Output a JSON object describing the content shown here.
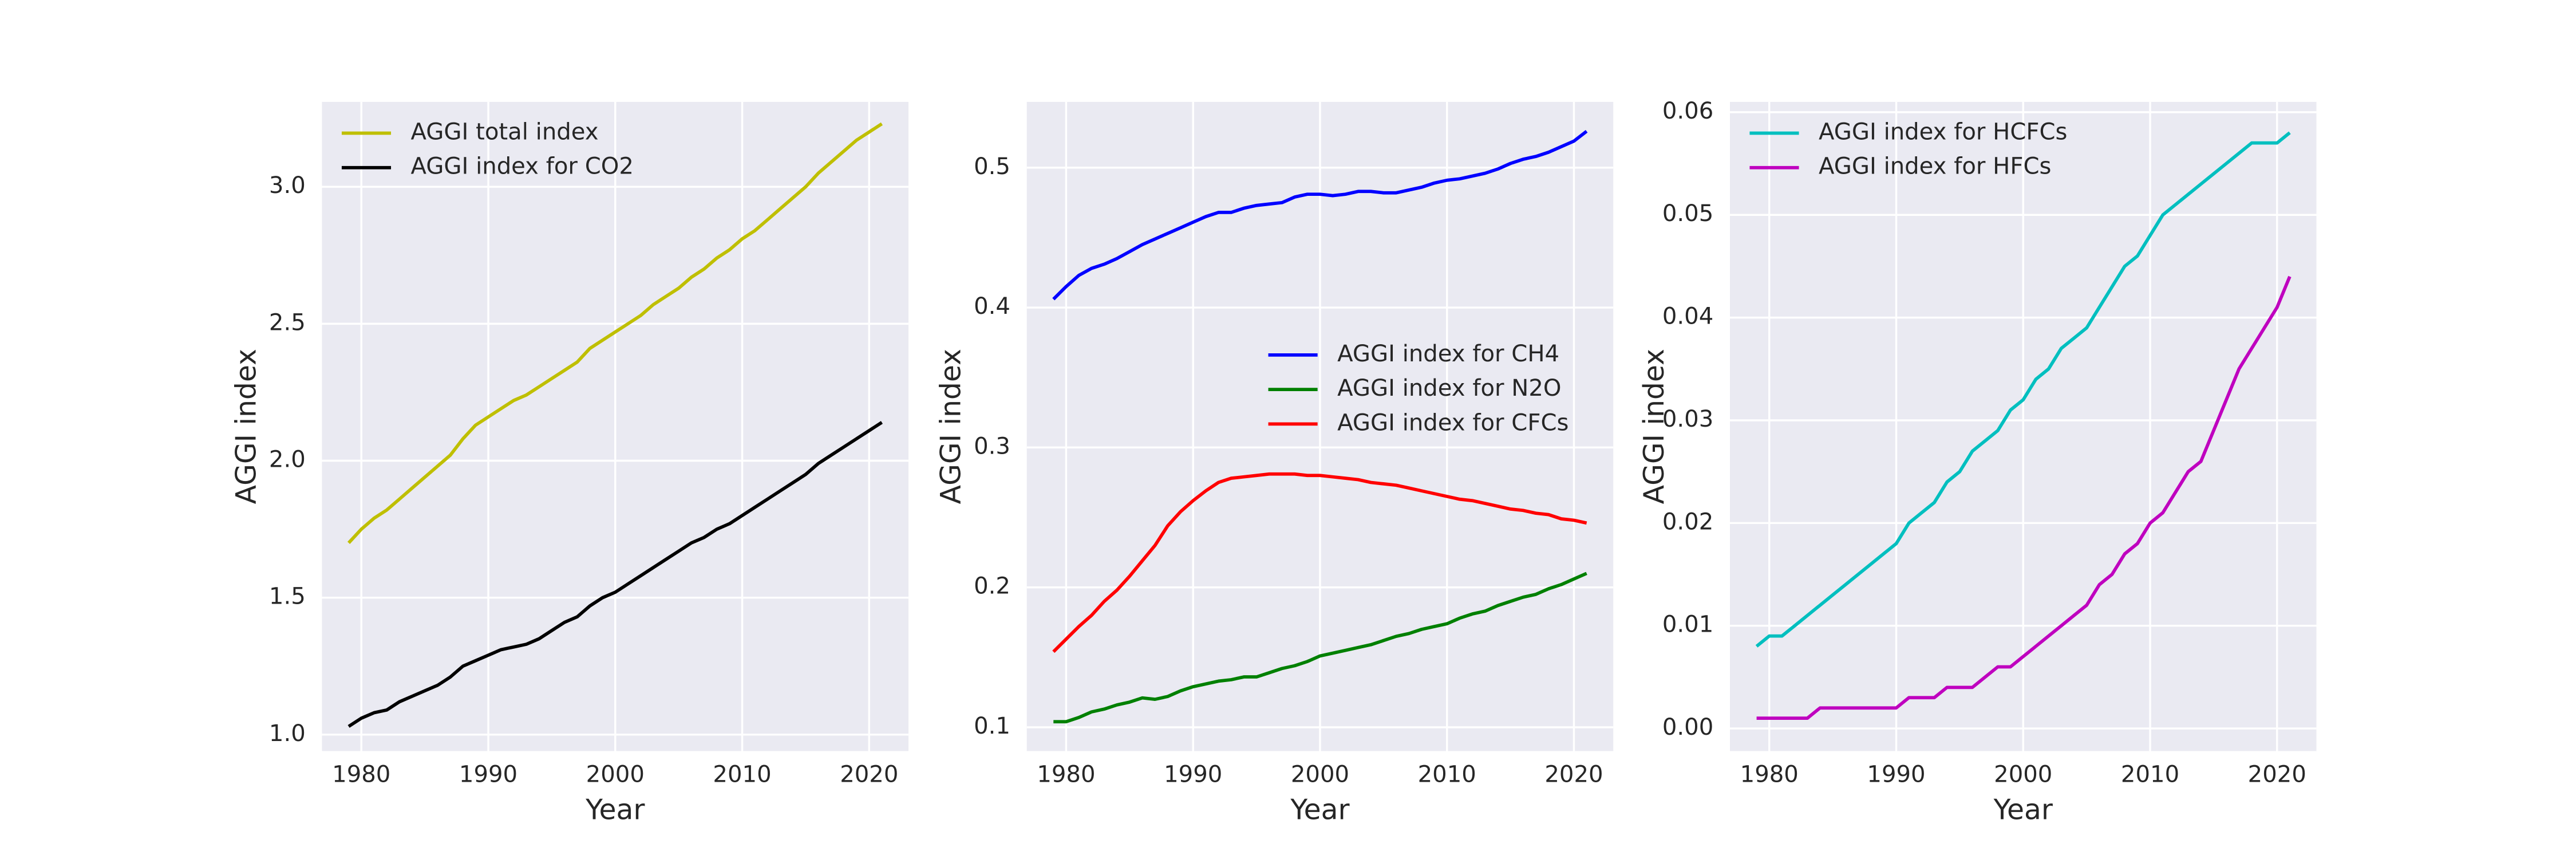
{
  "chart_data": [
    {
      "type": "line",
      "xlabel": "Year",
      "ylabel": "AGGI index",
      "grid": true,
      "legend_loc": "upper left",
      "x": [
        1979,
        1980,
        1981,
        1982,
        1983,
        1984,
        1985,
        1986,
        1987,
        1988,
        1989,
        1990,
        1991,
        1992,
        1993,
        1994,
        1995,
        1996,
        1997,
        1998,
        1999,
        2000,
        2001,
        2002,
        2003,
        2004,
        2005,
        2006,
        2007,
        2008,
        2009,
        2010,
        2011,
        2012,
        2013,
        2014,
        2015,
        2016,
        2017,
        2018,
        2019,
        2020,
        2021
      ],
      "xlim": [
        1976.9,
        2023.1
      ],
      "xticks": [
        1980,
        1990,
        2000,
        2010,
        2020
      ],
      "ylim": [
        0.94,
        3.31
      ],
      "yticks": [
        {
          "value": 1,
          "label": "1.0"
        },
        1.5,
        {
          "value": 2,
          "label": "2.0"
        },
        2.5,
        {
          "value": 3,
          "label": "3.0"
        }
      ],
      "series": [
        {
          "name": "AGGI total index",
          "color": "#bfbf00",
          "values": [
            1.7,
            1.75,
            1.79,
            1.82,
            1.86,
            1.9,
            1.94,
            1.98,
            2.02,
            2.08,
            2.13,
            2.16,
            2.19,
            2.22,
            2.24,
            2.27,
            2.3,
            2.33,
            2.36,
            2.41,
            2.44,
            2.47,
            2.5,
            2.53,
            2.57,
            2.6,
            2.63,
            2.67,
            2.7,
            2.74,
            2.77,
            2.81,
            2.84,
            2.88,
            2.92,
            2.96,
            3.0,
            3.05,
            3.09,
            3.13,
            3.17,
            3.2,
            3.23
          ]
        },
        {
          "name": "AGGI index for CO2",
          "color": "#000000",
          "values": [
            1.03,
            1.06,
            1.08,
            1.09,
            1.12,
            1.14,
            1.16,
            1.18,
            1.21,
            1.25,
            1.27,
            1.29,
            1.31,
            1.32,
            1.33,
            1.35,
            1.38,
            1.41,
            1.43,
            1.47,
            1.5,
            1.52,
            1.55,
            1.58,
            1.61,
            1.64,
            1.67,
            1.7,
            1.72,
            1.75,
            1.77,
            1.8,
            1.83,
            1.86,
            1.89,
            1.92,
            1.95,
            1.99,
            2.02,
            2.05,
            2.08,
            2.11,
            2.14
          ]
        }
      ]
    },
    {
      "type": "line",
      "xlabel": "Year",
      "ylabel": "AGGI index",
      "grid": true,
      "legend_loc": "center right",
      "x": [
        1979,
        1980,
        1981,
        1982,
        1983,
        1984,
        1985,
        1986,
        1987,
        1988,
        1989,
        1990,
        1991,
        1992,
        1993,
        1994,
        1995,
        1996,
        1997,
        1998,
        1999,
        2000,
        2001,
        2002,
        2003,
        2004,
        2005,
        2006,
        2007,
        2008,
        2009,
        2010,
        2011,
        2012,
        2013,
        2014,
        2015,
        2016,
        2017,
        2018,
        2019,
        2020,
        2021
      ],
      "xlim": [
        1976.9,
        2023.1
      ],
      "xticks": [
        1980,
        1990,
        2000,
        2010,
        2020
      ],
      "ylim": [
        0.083,
        0.547
      ],
      "yticks": [
        0.1,
        0.2,
        0.3,
        0.4,
        0.5
      ],
      "series": [
        {
          "name": "AGGI index for CH4",
          "color": "#0000ff",
          "values": [
            0.406,
            0.415,
            0.423,
            0.428,
            0.431,
            0.435,
            0.44,
            0.445,
            0.449,
            0.453,
            0.457,
            0.461,
            0.465,
            0.468,
            0.468,
            0.471,
            0.473,
            0.474,
            0.475,
            0.479,
            0.481,
            0.481,
            0.48,
            0.481,
            0.483,
            0.483,
            0.482,
            0.482,
            0.484,
            0.486,
            0.489,
            0.491,
            0.492,
            0.494,
            0.496,
            0.499,
            0.503,
            0.506,
            0.508,
            0.511,
            0.515,
            0.519,
            0.526
          ]
        },
        {
          "name": "AGGI index for N2O",
          "color": "#008000",
          "values": [
            0.104,
            0.104,
            0.107,
            0.111,
            0.113,
            0.116,
            0.118,
            0.121,
            0.12,
            0.122,
            0.126,
            0.129,
            0.131,
            0.133,
            0.134,
            0.136,
            0.136,
            0.139,
            0.142,
            0.144,
            0.147,
            0.151,
            0.153,
            0.155,
            0.157,
            0.159,
            0.162,
            0.165,
            0.167,
            0.17,
            0.172,
            0.174,
            0.178,
            0.181,
            0.183,
            0.187,
            0.19,
            0.193,
            0.195,
            0.199,
            0.202,
            0.206,
            0.21
          ]
        },
        {
          "name": "AGGI index for CFCs",
          "color": "#ff0000",
          "values": [
            0.154,
            0.163,
            0.172,
            0.18,
            0.19,
            0.198,
            0.208,
            0.219,
            0.23,
            0.244,
            0.254,
            0.262,
            0.269,
            0.275,
            0.278,
            0.279,
            0.28,
            0.281,
            0.281,
            0.281,
            0.28,
            0.28,
            0.279,
            0.278,
            0.277,
            0.275,
            0.274,
            0.273,
            0.271,
            0.269,
            0.267,
            0.265,
            0.263,
            0.262,
            0.26,
            0.258,
            0.256,
            0.255,
            0.253,
            0.252,
            0.249,
            0.248,
            0.246
          ]
        }
      ]
    },
    {
      "type": "line",
      "xlabel": "Year",
      "ylabel": "AGGI index",
      "grid": true,
      "legend_loc": "upper left",
      "x": [
        1979,
        1980,
        1981,
        1982,
        1983,
        1984,
        1985,
        1986,
        1987,
        1988,
        1989,
        1990,
        1991,
        1992,
        1993,
        1994,
        1995,
        1996,
        1997,
        1998,
        1999,
        2000,
        2001,
        2002,
        2003,
        2004,
        2005,
        2006,
        2007,
        2008,
        2009,
        2010,
        2011,
        2012,
        2013,
        2014,
        2015,
        2016,
        2017,
        2018,
        2019,
        2020,
        2021
      ],
      "xlim": [
        1976.9,
        2023.1
      ],
      "xticks": [
        1980,
        1990,
        2000,
        2010,
        2020
      ],
      "ylim": [
        -0.0022,
        0.061
      ],
      "yticks": [
        {
          "value": 0,
          "label": "0.00"
        },
        0.01,
        0.02,
        0.03,
        0.04,
        0.05,
        0.06
      ],
      "series": [
        {
          "name": "AGGI index for HCFCs",
          "color": "#00bfbf",
          "values": [
            0.008,
            0.009,
            0.009,
            0.01,
            0.011,
            0.012,
            0.013,
            0.014,
            0.015,
            0.016,
            0.017,
            0.018,
            0.02,
            0.021,
            0.022,
            0.024,
            0.025,
            0.027,
            0.028,
            0.029,
            0.031,
            0.032,
            0.034,
            0.035,
            0.037,
            0.038,
            0.039,
            0.041,
            0.043,
            0.045,
            0.046,
            0.048,
            0.05,
            0.051,
            0.052,
            0.053,
            0.054,
            0.055,
            0.056,
            0.057,
            0.057,
            0.057,
            0.058
          ]
        },
        {
          "name": "AGGI index for HFCs",
          "color": "#bf00bf",
          "values": [
            0.001,
            0.001,
            0.001,
            0.001,
            0.001,
            0.002,
            0.002,
            0.002,
            0.002,
            0.002,
            0.002,
            0.002,
            0.003,
            0.003,
            0.003,
            0.004,
            0.004,
            0.004,
            0.005,
            0.006,
            0.006,
            0.007,
            0.008,
            0.009,
            0.01,
            0.011,
            0.012,
            0.014,
            0.015,
            0.017,
            0.018,
            0.02,
            0.021,
            0.023,
            0.025,
            0.026,
            0.029,
            0.032,
            0.035,
            0.037,
            0.039,
            0.041,
            0.044
          ]
        }
      ]
    }
  ]
}
